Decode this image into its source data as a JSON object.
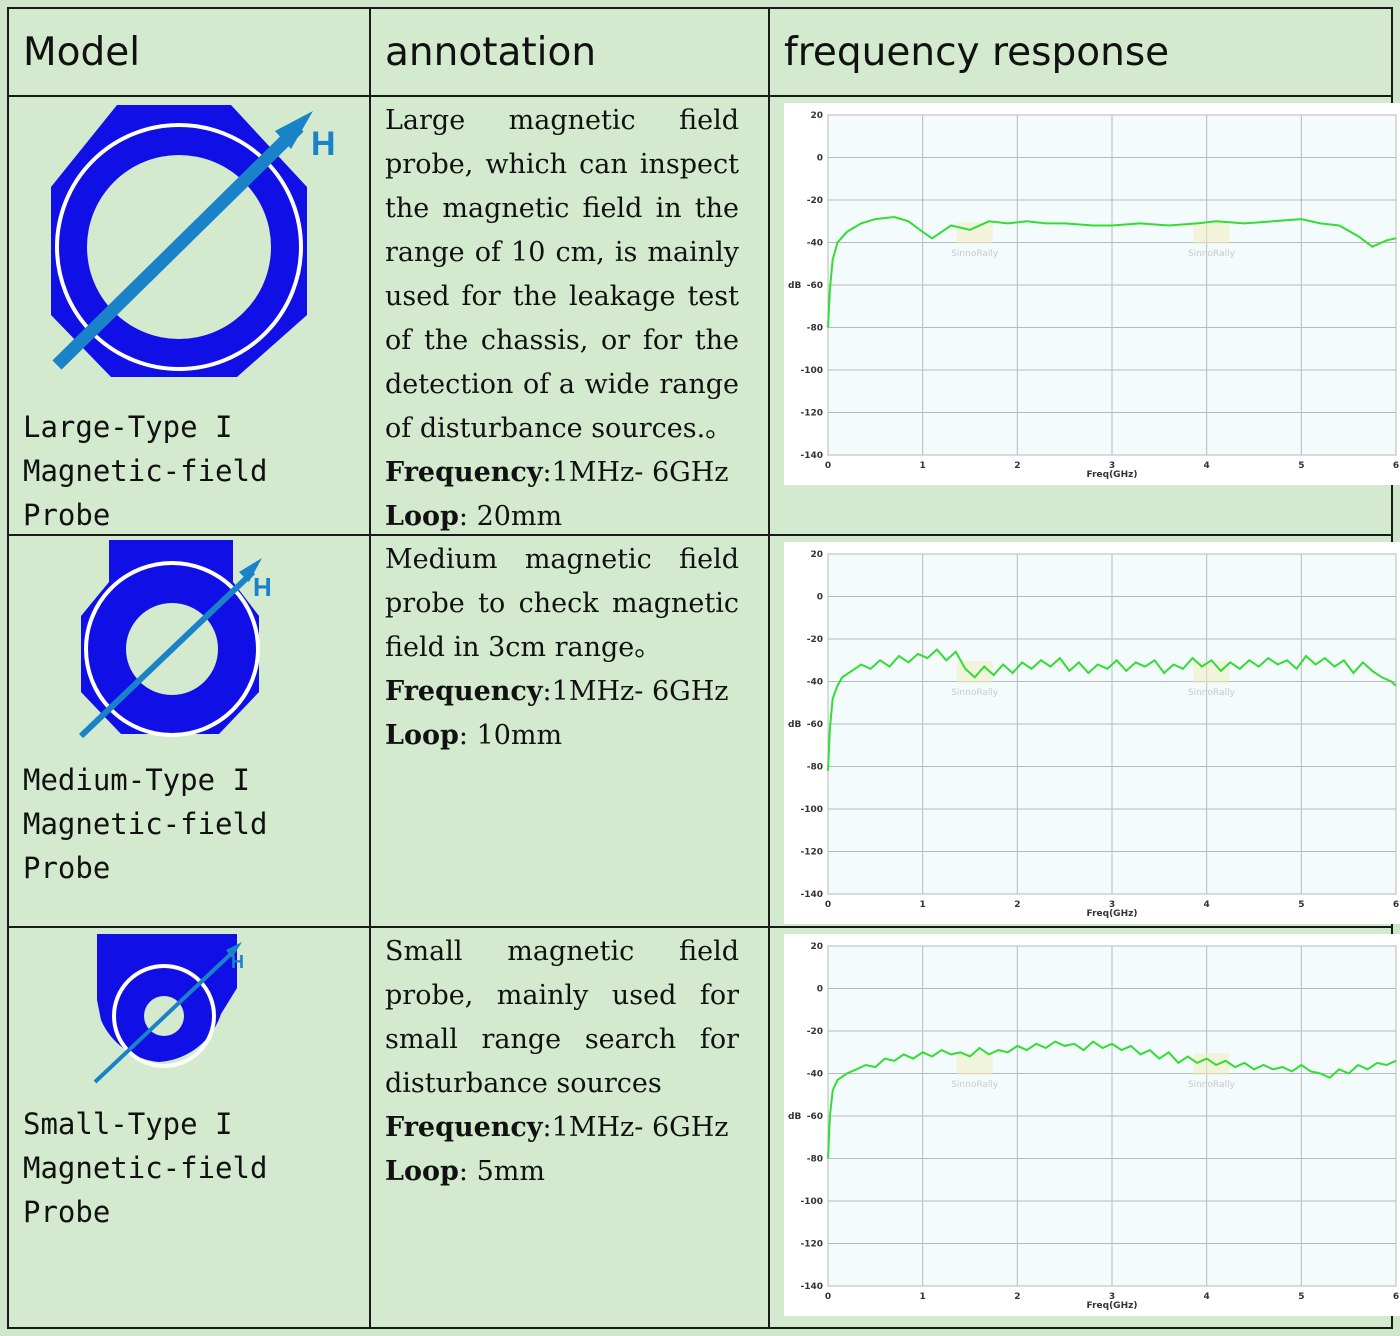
{
  "headers": {
    "model": "Model",
    "annotation": "annotation",
    "frequency_response": "frequency response"
  },
  "colors": {
    "probe_blue": "#1010e6",
    "arrow_blue": "#1a82c8",
    "curve_green": "#33dd33",
    "background": "#cfe8cc"
  },
  "rows": [
    {
      "model_name": "Large-Type I\nMagnetic-field\nProbe",
      "probe_label": "H",
      "description": "Large magnetic field probe, which can inspect the magnetic field in the range of 10 cm, is mainly used for the leakage test of the chassis, or for the detection of a wide range of disturbance sources.。",
      "freq_label": "Frequency",
      "freq_value": ":1MHz- 6GHz",
      "loop_label": "Loop",
      "loop_value": ":  20mm"
    },
    {
      "model_name": "Medium-Type I\nMagnetic-field\nProbe",
      "probe_label": "H",
      "description": "Medium magnetic field probe to check magnetic field in 3cm range。",
      "freq_label": "Frequency",
      "freq_value": ":1MHz- 6GHz",
      "loop_label": "Loop",
      "loop_value": ":  10mm"
    },
    {
      "model_name": "Small-Type I\nMagnetic-field\nProbe",
      "probe_label": "H",
      "description": "Small magnetic field probe, mainly used for small range search for disturbance sources",
      "freq_label": "Frequency",
      "freq_value": ":1MHz- 6GHz",
      "loop_label": "Loop",
      "loop_value": ":  5mm"
    }
  ],
  "chart_data": [
    {
      "type": "line",
      "xlabel": "Freq(GHz)",
      "ylabel": "dB",
      "xlim": [
        0,
        6
      ],
      "ylim": [
        -140,
        20
      ],
      "xticks": [
        "0",
        "1",
        "2",
        "3",
        "4",
        "5",
        "6"
      ],
      "yticks": [
        "20",
        "0",
        "-20",
        "-40",
        "-60",
        "-80",
        "-100",
        "-120",
        "-140"
      ],
      "grid": true,
      "watermark": "SinnoRally",
      "x": [
        0.0,
        0.02,
        0.05,
        0.1,
        0.2,
        0.35,
        0.5,
        0.7,
        0.85,
        1.0,
        1.1,
        1.3,
        1.5,
        1.7,
        1.9,
        2.1,
        2.3,
        2.5,
        2.8,
        3.0,
        3.3,
        3.6,
        3.9,
        4.1,
        4.4,
        4.7,
        5.0,
        5.2,
        5.4,
        5.6,
        5.75,
        5.9,
        6.0
      ],
      "y": [
        -80,
        -62,
        -48,
        -40,
        -35,
        -31,
        -29,
        -28,
        -30,
        -35,
        -38,
        -32,
        -34,
        -30,
        -31,
        -30,
        -31,
        -31,
        -32,
        -32,
        -31,
        -32,
        -31,
        -30,
        -31,
        -30,
        -29,
        -31,
        -32,
        -37,
        -42,
        -39,
        -38
      ]
    },
    {
      "type": "line",
      "xlabel": "Freq(GHz)",
      "ylabel": "dB",
      "xlim": [
        0,
        6
      ],
      "ylim": [
        -140,
        20
      ],
      "xticks": [
        "0",
        "1",
        "2",
        "3",
        "4",
        "5",
        "6"
      ],
      "yticks": [
        "20",
        "0",
        "-20",
        "-40",
        "-60",
        "-80",
        "-100",
        "-120",
        "-140"
      ],
      "grid": true,
      "watermark": "SinnoRally",
      "x": [
        0.0,
        0.02,
        0.05,
        0.1,
        0.15,
        0.25,
        0.35,
        0.45,
        0.55,
        0.65,
        0.75,
        0.85,
        0.95,
        1.05,
        1.15,
        1.25,
        1.35,
        1.45,
        1.55,
        1.65,
        1.75,
        1.85,
        1.95,
        2.05,
        2.15,
        2.25,
        2.35,
        2.45,
        2.55,
        2.65,
        2.75,
        2.85,
        2.95,
        3.05,
        3.15,
        3.25,
        3.35,
        3.45,
        3.55,
        3.65,
        3.75,
        3.85,
        3.95,
        4.05,
        4.15,
        4.25,
        4.35,
        4.45,
        4.55,
        4.65,
        4.75,
        4.85,
        4.95,
        5.05,
        5.15,
        5.25,
        5.35,
        5.45,
        5.55,
        5.65,
        5.75,
        5.85,
        5.95,
        6.0
      ],
      "y": [
        -82,
        -62,
        -48,
        -42,
        -38,
        -35,
        -32,
        -34,
        -30,
        -33,
        -28,
        -31,
        -27,
        -29,
        -25,
        -30,
        -26,
        -34,
        -38,
        -33,
        -37,
        -32,
        -36,
        -31,
        -34,
        -30,
        -33,
        -29,
        -35,
        -31,
        -36,
        -32,
        -34,
        -30,
        -35,
        -31,
        -33,
        -30,
        -36,
        -32,
        -34,
        -29,
        -33,
        -30,
        -35,
        -31,
        -34,
        -30,
        -33,
        -29,
        -32,
        -30,
        -34,
        -28,
        -32,
        -29,
        -33,
        -30,
        -36,
        -31,
        -35,
        -38,
        -40,
        -42
      ]
    },
    {
      "type": "line",
      "xlabel": "Freq(GHz)",
      "ylabel": "dB",
      "xlim": [
        0,
        6
      ],
      "ylim": [
        -140,
        20
      ],
      "xticks": [
        "0",
        "1",
        "2",
        "3",
        "4",
        "5",
        "6"
      ],
      "yticks": [
        "20",
        "0",
        "-20",
        "-40",
        "-60",
        "-80",
        "-100",
        "-120",
        "-140"
      ],
      "grid": true,
      "watermark": "SinnoRally",
      "x": [
        0.0,
        0.02,
        0.05,
        0.1,
        0.2,
        0.3,
        0.4,
        0.5,
        0.6,
        0.7,
        0.8,
        0.9,
        1.0,
        1.1,
        1.2,
        1.3,
        1.4,
        1.5,
        1.6,
        1.7,
        1.8,
        1.9,
        2.0,
        2.1,
        2.2,
        2.3,
        2.4,
        2.5,
        2.6,
        2.7,
        2.8,
        2.9,
        3.0,
        3.1,
        3.2,
        3.3,
        3.4,
        3.5,
        3.6,
        3.7,
        3.8,
        3.9,
        4.0,
        4.1,
        4.2,
        4.3,
        4.4,
        4.5,
        4.6,
        4.7,
        4.8,
        4.9,
        5.0,
        5.1,
        5.2,
        5.3,
        5.4,
        5.5,
        5.6,
        5.7,
        5.8,
        5.9,
        6.0
      ],
      "y": [
        -80,
        -60,
        -48,
        -43,
        -40,
        -38,
        -36,
        -37,
        -33,
        -34,
        -31,
        -33,
        -30,
        -32,
        -29,
        -31,
        -30,
        -32,
        -28,
        -31,
        -29,
        -30,
        -27,
        -29,
        -26,
        -28,
        -25,
        -27,
        -26,
        -29,
        -25,
        -28,
        -26,
        -29,
        -27,
        -31,
        -29,
        -33,
        -30,
        -35,
        -32,
        -35,
        -33,
        -36,
        -34,
        -37,
        -35,
        -38,
        -36,
        -38,
        -37,
        -39,
        -36,
        -39,
        -40,
        -42,
        -38,
        -40,
        -36,
        -38,
        -35,
        -36,
        -34
      ]
    }
  ]
}
